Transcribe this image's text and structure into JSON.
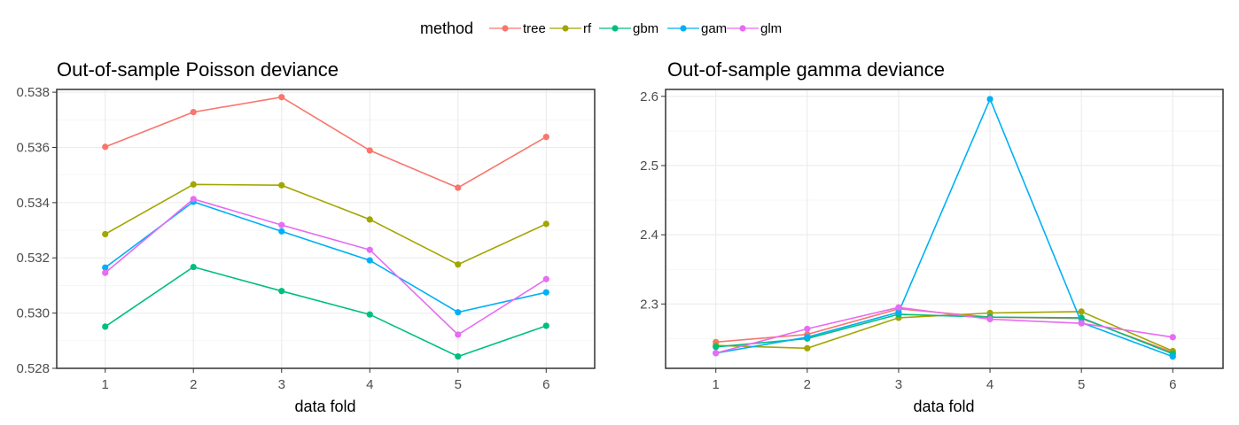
{
  "legend": {
    "title": "method",
    "entries": [
      {
        "name": "tree",
        "color": "#F8766D"
      },
      {
        "name": "rf",
        "color": "#A3A500"
      },
      {
        "name": "gbm",
        "color": "#00BF7D"
      },
      {
        "name": "gam",
        "color": "#00B0F6"
      },
      {
        "name": "glm",
        "color": "#E76BF3"
      }
    ]
  },
  "chart_data": [
    {
      "type": "line",
      "title": "Out-of-sample Poisson deviance",
      "xlabel": "data fold",
      "ylabel": "",
      "x": [
        1,
        2,
        3,
        4,
        5,
        6
      ],
      "xlim": [
        0.45,
        6.55
      ],
      "ylim": [
        0.528,
        0.5381
      ],
      "yticks": [
        0.528,
        0.53,
        0.532,
        0.534,
        0.536,
        0.538
      ],
      "ytick_labels": [
        "0.528",
        "0.530",
        "0.532",
        "0.534",
        "0.536",
        "0.538"
      ],
      "grid": true,
      "series": [
        {
          "name": "tree",
          "values": [
            0.53602,
            0.53728,
            0.53782,
            0.53589,
            0.53454,
            0.53638
          ]
        },
        {
          "name": "rf",
          "values": [
            0.53286,
            0.53466,
            0.53463,
            0.53339,
            0.53176,
            0.53323
          ]
        },
        {
          "name": "gbm",
          "values": [
            0.52951,
            0.53167,
            0.5308,
            0.52995,
            0.52843,
            0.52954
          ]
        },
        {
          "name": "gam",
          "values": [
            0.53165,
            0.53403,
            0.53296,
            0.53191,
            0.53003,
            0.53075
          ]
        },
        {
          "name": "glm",
          "values": [
            0.53146,
            0.53413,
            0.53319,
            0.53229,
            0.52922,
            0.53123
          ]
        }
      ]
    },
    {
      "type": "line",
      "title": "Out-of-sample gamma deviance",
      "xlabel": "data fold",
      "ylabel": "",
      "x": [
        1,
        2,
        3,
        4,
        5,
        6
      ],
      "xlim": [
        0.45,
        6.55
      ],
      "ylim": [
        2.207,
        2.61
      ],
      "yticks": [
        2.3,
        2.4,
        2.5,
        2.6
      ],
      "ytick_labels": [
        "2.3",
        "2.4",
        "2.5",
        "2.6"
      ],
      "grid": true,
      "series": [
        {
          "name": "tree",
          "values": [
            2.245,
            2.256,
            2.293,
            2.281,
            2.279,
            2.23
          ]
        },
        {
          "name": "rf",
          "values": [
            2.24,
            2.236,
            2.28,
            2.287,
            2.289,
            2.232
          ]
        },
        {
          "name": "gbm",
          "values": [
            2.238,
            2.25,
            2.285,
            2.281,
            2.28,
            2.228
          ]
        },
        {
          "name": "gam",
          "values": [
            2.229,
            2.252,
            2.288,
            2.596,
            2.273,
            2.224
          ]
        },
        {
          "name": "glm",
          "values": [
            2.229,
            2.264,
            2.295,
            2.278,
            2.272,
            2.252
          ]
        }
      ]
    }
  ]
}
